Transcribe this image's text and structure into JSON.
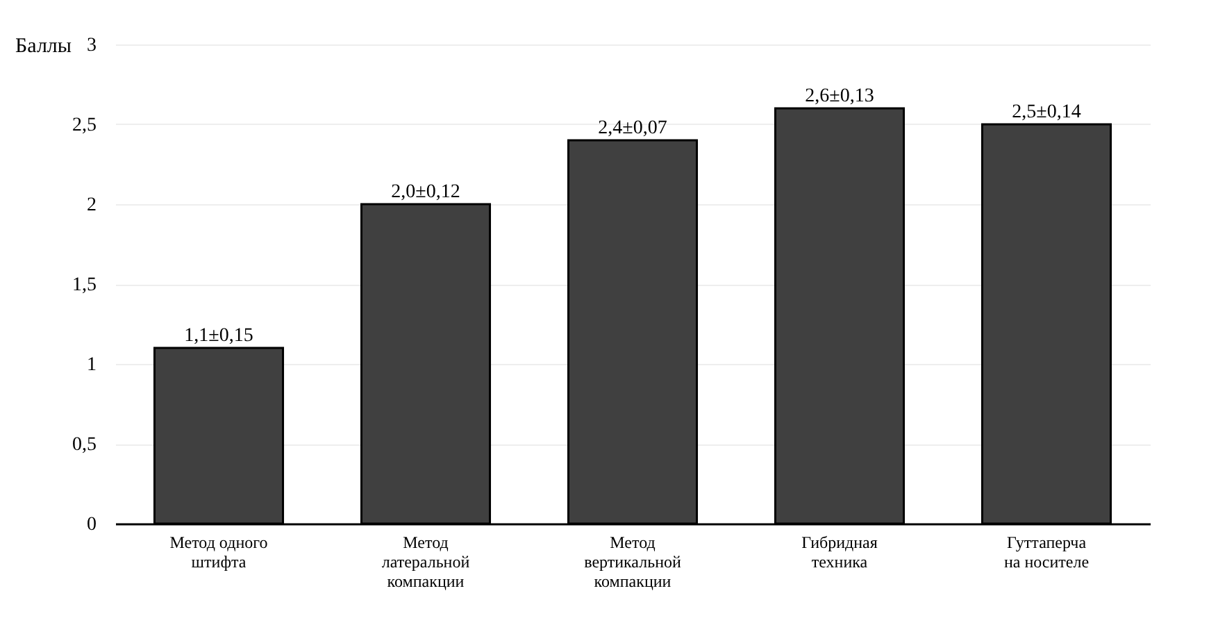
{
  "chart_data": {
    "type": "bar",
    "ylabel": "Баллы",
    "categories": [
      "Метод одного\nштифта",
      "Метод\nлатеральной\nкомпакции",
      "Метод\nвертикальной\nкомпакции",
      "Гибридная\nтехника",
      "Гуттаперча\nна носителе"
    ],
    "values": [
      1.1,
      2.0,
      2.4,
      2.6,
      2.5
    ],
    "value_labels": [
      "1,1±0,15",
      "2,0±0,12",
      "2,4±0,07",
      "2,6±0,13",
      "2,5±0,14"
    ],
    "color": "#404040",
    "ylim": [
      0,
      3
    ],
    "yticks": [
      0,
      {
        "value": 0.5,
        "label": "0,5"
      },
      1,
      {
        "value": 1.5,
        "label": "1,5"
      },
      2,
      {
        "value": 2.5,
        "label": "2,5"
      },
      3
    ],
    "grid": "y"
  }
}
